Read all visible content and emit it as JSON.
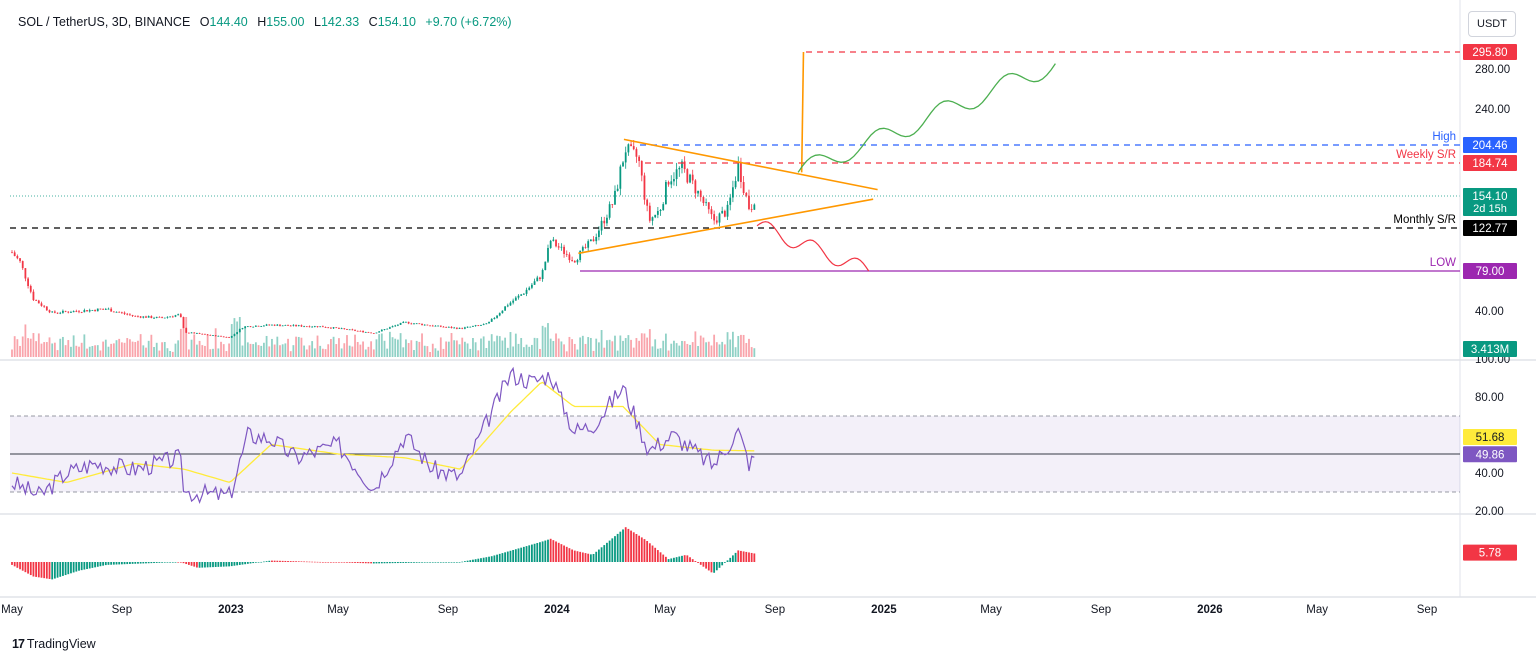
{
  "header": {
    "symbol": "SOL / TetherUS, 3D, BINANCE",
    "open_label": "O",
    "open": "144.40",
    "high_label": "H",
    "high": "155.00",
    "low_label": "L",
    "low": "142.33",
    "close_label": "C",
    "close": "154.10",
    "change": "+9.70 (+6.72%)"
  },
  "currency_button": "USDT",
  "branding": {
    "logo": "17",
    "name": "TradingView"
  },
  "colors": {
    "up": "#089981",
    "down": "#f23645",
    "triangle": "#ff9800",
    "rsi": "#7e57c2",
    "rsi_ma": "#ffeb3b",
    "low_line": "#9c27b0",
    "high_line": "#2962ff"
  },
  "chart_data": [
    {
      "type": "candlestick",
      "title": "SOL / TetherUS, 3D, BINANCE",
      "y_axis_labels": [
        "280.00",
        "240.00",
        "40.00"
      ],
      "y_range": [
        25,
        300
      ],
      "x_tick_labels": [
        "May",
        "Sep",
        "2023",
        "May",
        "Sep",
        "2024",
        "May",
        "Sep",
        "2025",
        "May",
        "Sep",
        "2026",
        "May",
        "Sep"
      ],
      "x_tick_dates": [
        "2022-05",
        "2022-09",
        "2023-01",
        "2023-05",
        "2023-09",
        "2024-01",
        "2024-05",
        "2024-09",
        "2025-01",
        "2025-05",
        "2025-09",
        "2026-01",
        "2026-05",
        "2026-09"
      ],
      "close_path": [
        {
          "date": "2022-05-01",
          "value": 98
        },
        {
          "date": "2022-05-10",
          "value": 88
        },
        {
          "date": "2022-05-25",
          "value": 52
        },
        {
          "date": "2022-06-15",
          "value": 38
        },
        {
          "date": "2022-07-15",
          "value": 40
        },
        {
          "date": "2022-08-15",
          "value": 42
        },
        {
          "date": "2022-09-15",
          "value": 34
        },
        {
          "date": "2022-10-15",
          "value": 32
        },
        {
          "date": "2022-11-05",
          "value": 36
        },
        {
          "date": "2022-11-10",
          "value": 16
        },
        {
          "date": "2022-12-31",
          "value": 10
        },
        {
          "date": "2023-01-15",
          "value": 22
        },
        {
          "date": "2023-02-15",
          "value": 24
        },
        {
          "date": "2023-04-15",
          "value": 22
        },
        {
          "date": "2023-06-10",
          "value": 15
        },
        {
          "date": "2023-07-15",
          "value": 27
        },
        {
          "date": "2023-08-15",
          "value": 23
        },
        {
          "date": "2023-09-15",
          "value": 20
        },
        {
          "date": "2023-10-15",
          "value": 25
        },
        {
          "date": "2023-11-05",
          "value": 45
        },
        {
          "date": "2023-11-25",
          "value": 58
        },
        {
          "date": "2023-12-15",
          "value": 75
        },
        {
          "date": "2023-12-25",
          "value": 110
        },
        {
          "date": "2024-01-20",
          "value": 90
        },
        {
          "date": "2024-02-10",
          "value": 110
        },
        {
          "date": "2024-03-05",
          "value": 150
        },
        {
          "date": "2024-03-18",
          "value": 200
        },
        {
          "date": "2024-04-01",
          "value": 190
        },
        {
          "date": "2024-04-13",
          "value": 130
        },
        {
          "date": "2024-04-25",
          "value": 140
        },
        {
          "date": "2024-05-05",
          "value": 170
        },
        {
          "date": "2024-05-20",
          "value": 180
        },
        {
          "date": "2024-06-05",
          "value": 160
        },
        {
          "date": "2024-06-24",
          "value": 130
        },
        {
          "date": "2024-07-10",
          "value": 140
        },
        {
          "date": "2024-07-22",
          "value": 183
        },
        {
          "date": "2024-08-04",
          "value": 140
        },
        {
          "date": "2024-08-10",
          "value": 154
        }
      ],
      "volume_label": "3.413M",
      "price_labels": [
        {
          "name": "target",
          "value": "295.80",
          "color": "#f23645"
        },
        {
          "name": "high",
          "value": "204.46",
          "color": "#2962ff",
          "text": "High"
        },
        {
          "name": "weekly-sr",
          "value": "184.74",
          "color": "#f23645",
          "text": "Weekly S/R"
        },
        {
          "name": "last-price",
          "value": "154.10",
          "color": "#089981",
          "countdown": "2d 15h"
        },
        {
          "name": "monthly-sr",
          "value": "122.77",
          "color": "#000000",
          "text": "Monthly S/R"
        },
        {
          "name": "low",
          "value": "79.00",
          "color": "#9c27b0",
          "text": "LOW"
        }
      ],
      "annotations": [
        "symmetrical triangle",
        "breakout target projection",
        "breakdown projection"
      ]
    },
    {
      "type": "line",
      "series_names": [
        "RSI",
        "RSI MA"
      ],
      "y_axis_labels": [
        "100.00",
        "80.00",
        "40.00",
        "20.00"
      ],
      "y_range": [
        20,
        100
      ],
      "band": [
        30,
        70
      ],
      "mid": 50,
      "last_values": {
        "ma": "51.68",
        "rsi": "49.86"
      },
      "rsi_path": [
        {
          "date": "2022-05-01",
          "value": 35
        },
        {
          "date": "2022-06-01",
          "value": 28
        },
        {
          "date": "2022-07-01",
          "value": 40
        },
        {
          "date": "2022-08-01",
          "value": 45
        },
        {
          "date": "2022-09-15",
          "value": 42
        },
        {
          "date": "2022-11-05",
          "value": 48
        },
        {
          "date": "2022-11-10",
          "value": 30
        },
        {
          "date": "2022-12-31",
          "value": 28
        },
        {
          "date": "2023-01-20",
          "value": 60
        },
        {
          "date": "2023-02-15",
          "value": 58
        },
        {
          "date": "2023-03-15",
          "value": 48
        },
        {
          "date": "2023-05-01",
          "value": 55
        },
        {
          "date": "2023-06-10",
          "value": 32
        },
        {
          "date": "2023-07-15",
          "value": 60
        },
        {
          "date": "2023-08-15",
          "value": 42
        },
        {
          "date": "2023-09-15",
          "value": 38
        },
        {
          "date": "2023-10-20",
          "value": 72
        },
        {
          "date": "2023-11-10",
          "value": 92
        },
        {
          "date": "2023-12-05",
          "value": 88
        },
        {
          "date": "2023-12-25",
          "value": 92
        },
        {
          "date": "2024-01-20",
          "value": 62
        },
        {
          "date": "2024-02-10",
          "value": 65
        },
        {
          "date": "2024-03-15",
          "value": 85
        },
        {
          "date": "2024-04-13",
          "value": 52
        },
        {
          "date": "2024-05-10",
          "value": 60
        },
        {
          "date": "2024-06-24",
          "value": 44
        },
        {
          "date": "2024-07-22",
          "value": 62
        },
        {
          "date": "2024-08-04",
          "value": 44
        },
        {
          "date": "2024-08-10",
          "value": 49.86
        }
      ],
      "rsi_ma_path": [
        {
          "date": "2022-05-01",
          "value": 40
        },
        {
          "date": "2022-07-01",
          "value": 35
        },
        {
          "date": "2022-09-15",
          "value": 45
        },
        {
          "date": "2022-11-10",
          "value": 42
        },
        {
          "date": "2022-12-31",
          "value": 35
        },
        {
          "date": "2023-02-15",
          "value": 55
        },
        {
          "date": "2023-05-01",
          "value": 50
        },
        {
          "date": "2023-07-15",
          "value": 48
        },
        {
          "date": "2023-09-15",
          "value": 42
        },
        {
          "date": "2023-11-10",
          "value": 72
        },
        {
          "date": "2023-12-15",
          "value": 88
        },
        {
          "date": "2024-01-20",
          "value": 75
        },
        {
          "date": "2024-03-15",
          "value": 75
        },
        {
          "date": "2024-04-25",
          "value": 55
        },
        {
          "date": "2024-06-24",
          "value": 52
        },
        {
          "date": "2024-08-10",
          "value": 51.68
        }
      ]
    },
    {
      "type": "histogram",
      "series_names": [
        "MACD histogram"
      ],
      "last_value": "5.78",
      "histogram_path": [
        {
          "date": "2022-05-01",
          "value": -2
        },
        {
          "date": "2022-05-25",
          "value": -10
        },
        {
          "date": "2022-06-15",
          "value": -12
        },
        {
          "date": "2022-07-15",
          "value": -6
        },
        {
          "date": "2022-08-15",
          "value": -2
        },
        {
          "date": "2022-11-05",
          "value": 0
        },
        {
          "date": "2022-11-25",
          "value": -4
        },
        {
          "date": "2022-12-31",
          "value": -3
        },
        {
          "date": "2023-02-15",
          "value": 1
        },
        {
          "date": "2023-06-10",
          "value": -1
        },
        {
          "date": "2023-09-15",
          "value": 0
        },
        {
          "date": "2023-10-20",
          "value": 4
        },
        {
          "date": "2023-12-15",
          "value": 14
        },
        {
          "date": "2023-12-25",
          "value": 16
        },
        {
          "date": "2024-01-20",
          "value": 8
        },
        {
          "date": "2024-02-10",
          "value": 5
        },
        {
          "date": "2024-03-18",
          "value": 24
        },
        {
          "date": "2024-04-10",
          "value": 15
        },
        {
          "date": "2024-05-05",
          "value": 2
        },
        {
          "date": "2024-05-25",
          "value": 5
        },
        {
          "date": "2024-06-24",
          "value": -8
        },
        {
          "date": "2024-07-22",
          "value": 8
        },
        {
          "date": "2024-08-10",
          "value": 5.78
        }
      ]
    }
  ]
}
